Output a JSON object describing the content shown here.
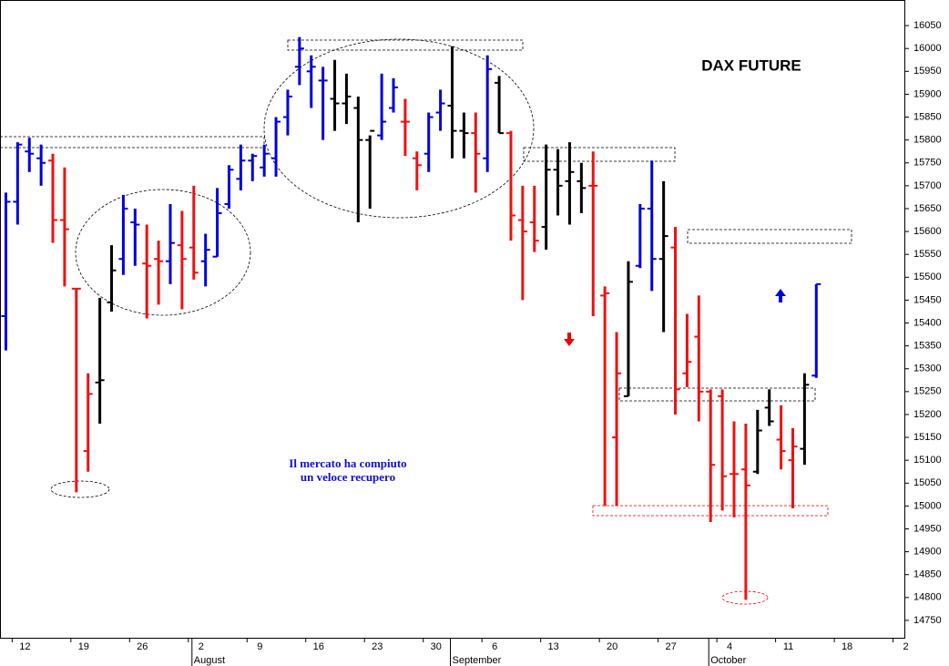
{
  "chart_data": {
    "type": "ohlc",
    "title": "DAX FUTURE",
    "annotations": [
      "Il mercato ha compiuto",
      "un veloce recupero"
    ],
    "categories": [
      null,
      "12",
      null,
      null,
      null,
      null,
      "19",
      null,
      null,
      null,
      null,
      "26",
      null,
      null,
      null,
      null,
      "2",
      null,
      null,
      null,
      null,
      "9",
      null,
      null,
      null,
      null,
      "16",
      null,
      null,
      null,
      null,
      "23",
      null,
      null,
      null,
      null,
      "30",
      null,
      null,
      null,
      null,
      "6",
      null,
      null,
      null,
      null,
      "13",
      null,
      null,
      null,
      null,
      "20",
      null,
      null,
      null,
      null,
      "27",
      null,
      null,
      null,
      null,
      "4",
      null,
      null,
      null,
      null,
      "11",
      null,
      null,
      null,
      null,
      "18",
      null,
      null,
      null,
      null,
      "2"
    ],
    "month_ticks": [
      {
        "value": 16,
        "label": "August"
      },
      {
        "value": 38,
        "label": "September"
      },
      {
        "value": 60,
        "label": "October"
      }
    ],
    "open": [
      15415,
      15665,
      15775,
      15760,
      15755,
      15625,
      15475,
      15120,
      15270,
      15445,
      15540,
      15620,
      15530,
      15540,
      15535,
      15570,
      15565,
      15535,
      15545,
      15660,
      15715,
      15755,
      15740,
      15760,
      15850,
      15960,
      15950,
      15930,
      15890,
      15880,
      15870,
      15800,
      15810,
      15870,
      15840,
      15760,
      15770,
      15860,
      15875,
      15820,
      15815,
      15760,
      15925,
      15815,
      15625,
      15620,
      15610,
      15735,
      15710,
      15710,
      15700,
      15460,
      15150,
      15240,
      15525,
      15650,
      15540,
      15565,
      15290,
      15370,
      15250,
      15240,
      15070,
      15080,
      15075,
      15215,
      15145,
      15100,
      15125,
      15285,
      null,
      null,
      null,
      null,
      null,
      null,
      null
    ],
    "high": [
      15685,
      15795,
      15805,
      15790,
      15770,
      15740,
      15475,
      15290,
      15455,
      15570,
      15680,
      15650,
      15615,
      15580,
      15660,
      15645,
      15700,
      15595,
      15695,
      15745,
      15790,
      15770,
      15790,
      15850,
      15910,
      16025,
      15985,
      15960,
      15975,
      15945,
      15895,
      15810,
      15945,
      15935,
      15890,
      15775,
      15860,
      15910,
      16005,
      15860,
      15860,
      15985,
      15940,
      15820,
      15700,
      15700,
      15790,
      15780,
      15795,
      15750,
      15775,
      15480,
      15380,
      15535,
      15660,
      15755,
      15710,
      15610,
      15420,
      15460,
      15255,
      15255,
      15185,
      15180,
      15210,
      15255,
      15220,
      15170,
      15290,
      15485,
      null,
      null,
      null,
      null,
      null,
      null,
      null
    ],
    "low": [
      15340,
      15615,
      15730,
      15700,
      15575,
      15480,
      15030,
      15075,
      15180,
      15425,
      15505,
      15525,
      15410,
      15440,
      15485,
      15430,
      15495,
      15480,
      15545,
      15650,
      15690,
      15710,
      15720,
      15720,
      15810,
      15920,
      15870,
      15800,
      15820,
      15835,
      15620,
      15650,
      15800,
      15860,
      15765,
      15690,
      15730,
      15820,
      15760,
      15760,
      15685,
      15730,
      15815,
      15580,
      15450,
      15555,
      15560,
      15635,
      15615,
      15640,
      15415,
      15000,
      15000,
      15240,
      15520,
      15470,
      15380,
      15200,
      15260,
      15185,
      14965,
      14990,
      14975,
      14795,
      15070,
      15175,
      15080,
      14995,
      15090,
      15280,
      null,
      null,
      null,
      null,
      null,
      null,
      null
    ],
    "close": [
      15665,
      15790,
      15770,
      15750,
      15625,
      15605,
      15475,
      15245,
      15275,
      15515,
      15650,
      15615,
      15525,
      15535,
      15575,
      15540,
      15510,
      15560,
      15640,
      15735,
      15755,
      15765,
      15770,
      15840,
      15895,
      16000,
      15960,
      15930,
      15880,
      15895,
      15800,
      15820,
      15840,
      15915,
      15840,
      15745,
      15850,
      15880,
      15820,
      15815,
      15770,
      15955,
      15815,
      15635,
      15600,
      15580,
      15735,
      15700,
      15730,
      15695,
      15700,
      15465,
      15290,
      15490,
      15650,
      15540,
      15590,
      15255,
      15315,
      15250,
      15090,
      15065,
      15070,
      15045,
      15165,
      15185,
      15120,
      15130,
      15265,
      15485,
      null,
      null,
      null,
      null,
      null,
      null,
      null
    ],
    "colors": [
      "#0000dd",
      "#0000dd",
      "#0000dd",
      "#0000dd",
      "#ee1111",
      "#ee1111",
      "#ee1111",
      "#ee1111",
      "#000000",
      "#000000",
      "#0000dd",
      "#0000dd",
      "#ee1111",
      "#ee1111",
      "#0000dd",
      "#ee1111",
      "#ee1111",
      "#0000dd",
      "#0000dd",
      "#0000dd",
      "#0000dd",
      "#0000dd",
      "#0000dd",
      "#0000dd",
      "#0000dd",
      "#0000dd",
      "#0000dd",
      "#0000dd",
      "#000000",
      "#000000",
      "#000000",
      "#000000",
      "#0000dd",
      "#0000dd",
      "#ee1111",
      "#ee1111",
      "#0000dd",
      "#0000dd",
      "#000000",
      "#000000",
      "#ee1111",
      "#0000dd",
      "#000000",
      "#ee1111",
      "#ee1111",
      "#ee1111",
      "#000000",
      "#000000",
      "#000000",
      "#000000",
      "#ee1111",
      "#ee1111",
      "#ee1111",
      "#000000",
      "#0000dd",
      "#0000dd",
      "#000000",
      "#ee1111",
      "#ee1111",
      "#ee1111",
      "#ee1111",
      "#ee1111",
      "#ee1111",
      "#ee1111",
      "#000000",
      "#000000",
      "#ee1111",
      "#ee1111",
      "#000000",
      "#0000dd",
      null,
      null,
      null,
      null,
      null,
      null,
      null
    ],
    "ylim": [
      14712,
      16106
    ],
    "yticks": [
      14750,
      14800,
      14850,
      14900,
      14950,
      15000,
      15050,
      15100,
      15150,
      15200,
      15250,
      15300,
      15350,
      15400,
      15450,
      15500,
      15550,
      15600,
      15650,
      15700,
      15750,
      15800,
      15850,
      15900,
      15950,
      16000,
      16050
    ]
  }
}
